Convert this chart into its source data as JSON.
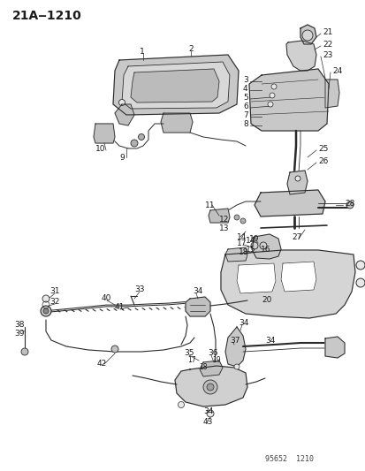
{
  "title": "21A‒1210",
  "footer": "95652  1210",
  "bg_color": "#ffffff",
  "text_color": "#1a1a1a",
  "line_color": "#2a2a2a",
  "title_fontsize": 10,
  "label_fontsize": 6.5,
  "fig_width": 4.14,
  "fig_height": 5.33,
  "dpi": 100
}
